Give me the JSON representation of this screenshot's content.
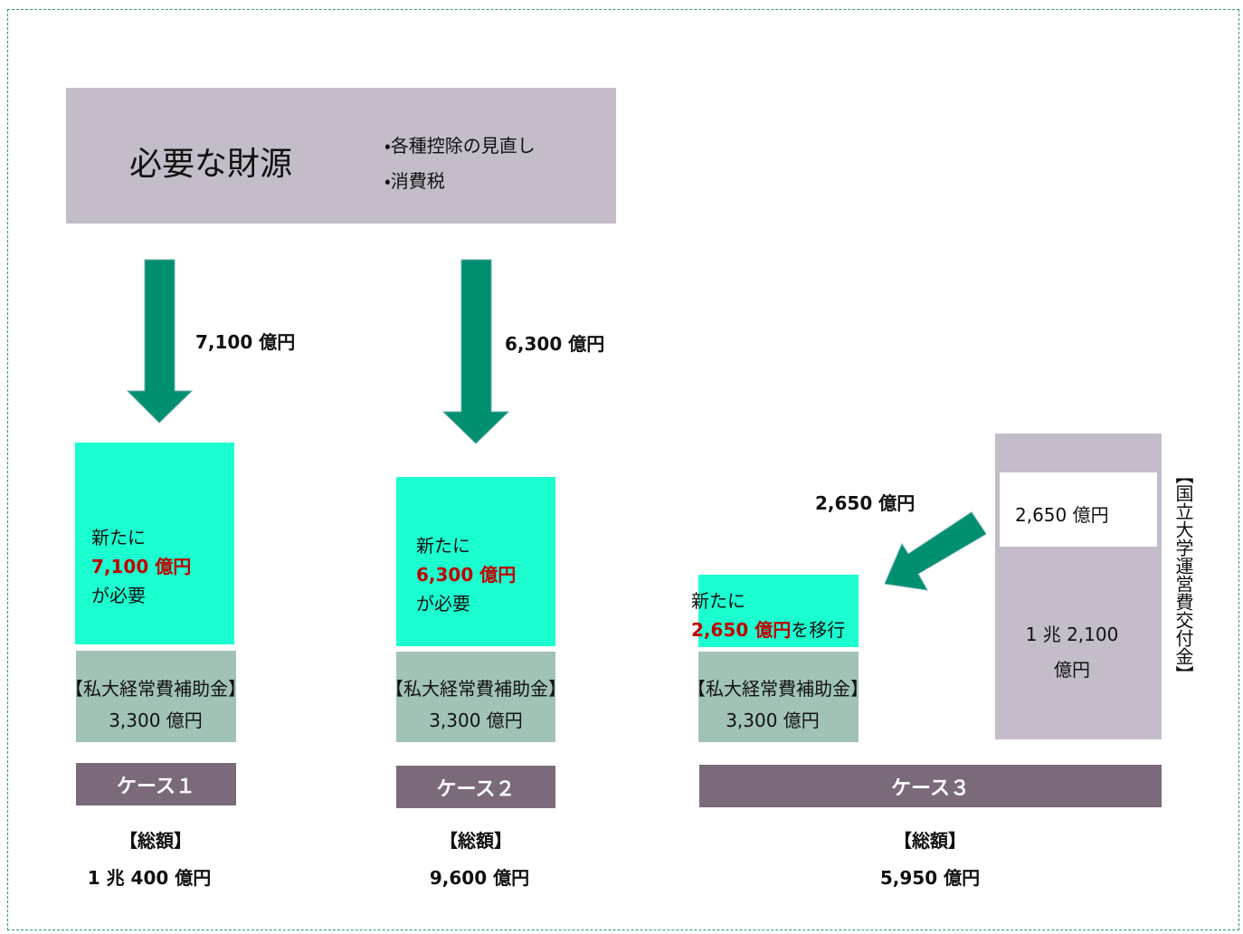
{
  "source": {
    "title": "必要な財源",
    "bullets": [
      "・各種控除の見直し",
      "・消費税"
    ]
  },
  "cases": [
    {
      "arrow_label": "7,100 億円",
      "new_lines": [
        "新たに",
        "7,100 億円",
        "が必要"
      ],
      "base_title": "【私大経常費補助金】",
      "base_amount": "3,300 億円",
      "label": "ケース１",
      "total_title": "【総額】",
      "total": "1 兆 400 億円"
    },
    {
      "arrow_label": "6,300 億円",
      "new_lines": [
        "新たに",
        "6,300 億円",
        "が必要"
      ],
      "base_title": "【私大経常費補助金】",
      "base_amount": "3,300 億円",
      "label": "ケース２",
      "total_title": "【総額】",
      "total": "9,600 億円"
    },
    {
      "arrow_label": "2,650 億円",
      "new_lines": [
        "新たに",
        "2,650 億円",
        "を移行"
      ],
      "base_title": "【私大経常費補助金】",
      "base_amount": "3,300 億円",
      "label": "ケース３",
      "total_title": "【総額】",
      "total": "5,950 億円"
    }
  ],
  "national": {
    "transfer": "2,650 億円",
    "remaining": [
      "1 兆 2,100",
      "億円"
    ],
    "title": "【国立大学運営費交付金】"
  }
}
